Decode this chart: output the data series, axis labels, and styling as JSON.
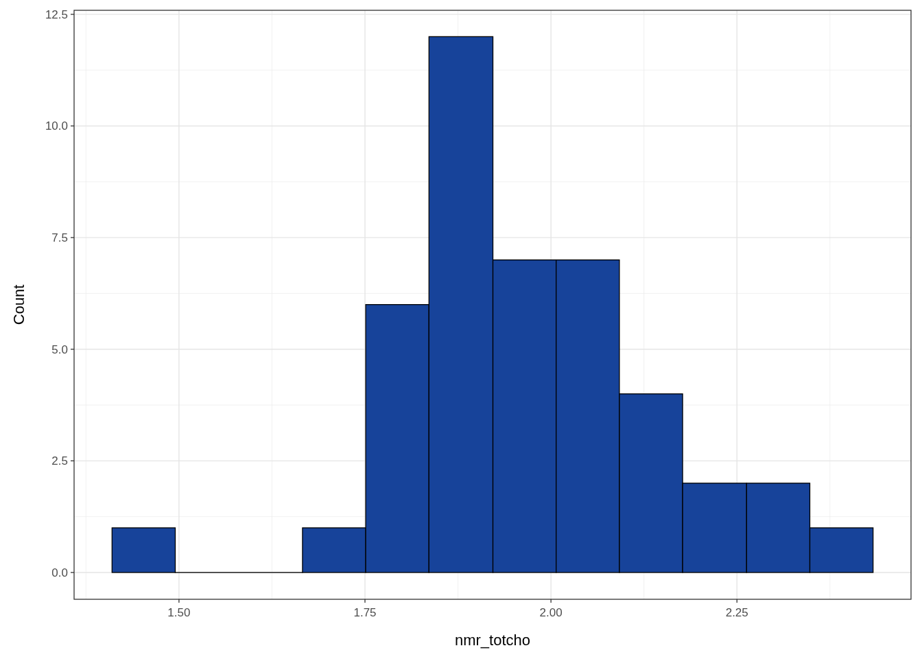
{
  "chart_data": {
    "type": "histogram",
    "xlabel": "nmr_totcho",
    "ylabel": "Count",
    "bins": [
      1.41,
      1.495,
      1.666,
      1.751,
      1.836,
      1.922,
      2.007,
      2.092,
      2.177,
      2.263,
      2.348,
      2.433
    ],
    "values": [
      1,
      0,
      1,
      6,
      12,
      7,
      7,
      4,
      2,
      2,
      1
    ],
    "color": "#17439a",
    "xlim": [
      1.359,
      2.484
    ],
    "ylim": [
      -0.6,
      12.59
    ],
    "xticks": [
      {
        "value": 1.5,
        "label": "1.50"
      },
      {
        "value": 1.75,
        "label": "1.75"
      },
      {
        "value": 2.0,
        "label": "2.00"
      },
      {
        "value": 2.25,
        "label": "2.25"
      }
    ],
    "yticks": [
      {
        "value": 0,
        "label": "0.0"
      },
      {
        "value": 2.5,
        "label": "2.5"
      },
      {
        "value": 5,
        "label": "5.0"
      },
      {
        "value": 7.5,
        "label": "7.5"
      },
      {
        "value": 10,
        "label": "10.0"
      },
      {
        "value": 12.5,
        "label": "12.5"
      }
    ],
    "grid": true
  }
}
